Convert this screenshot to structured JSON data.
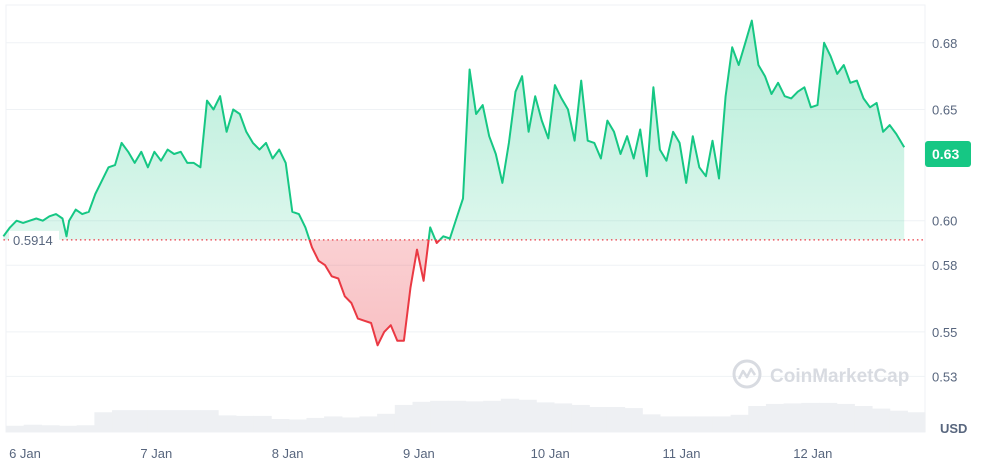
{
  "colors": {
    "up": "#16c784",
    "down": "#ea3943",
    "grid": "#eff2f5",
    "axis_text": "#58667e",
    "volume": "#eef0f3",
    "baseline": "#ea3943"
  },
  "watermark": "CoinMarketCap",
  "currency_label": "USD",
  "chart_data": {
    "type": "area",
    "title": "",
    "xlabel": "",
    "ylabel": "",
    "ylim": [
      0.505,
      0.697
    ],
    "grid": true,
    "y_ticks": [
      0.68,
      0.65,
      0.6,
      0.58,
      0.55,
      0.53
    ],
    "y_tick_labels": [
      "0.68",
      "0.65",
      "0.60",
      "0.58",
      "0.55",
      "0.53"
    ],
    "x_ticks": [
      0,
      1,
      2,
      3,
      4,
      5,
      6
    ],
    "x_tick_labels": [
      "6 Jan",
      "7 Jan",
      "8 Jan",
      "9 Jan",
      "10 Jan",
      "11 Jan",
      "12 Jan"
    ],
    "xlim": [
      -0.05,
      6.81
    ],
    "baseline": 0.5914,
    "baseline_label": "0.5914",
    "current_value": 0.63,
    "current_label": "0.63",
    "series": [
      {
        "x": [
          -0.05,
          0.0,
          0.05,
          0.1,
          0.15,
          0.2,
          0.25,
          0.3,
          0.35,
          0.4,
          0.43,
          0.45,
          0.5,
          0.55,
          0.6,
          0.65,
          0.7,
          0.75,
          0.8,
          0.85,
          0.9,
          0.95,
          1.0,
          1.05,
          1.1,
          1.15,
          1.2,
          1.25,
          1.3,
          1.35,
          1.4,
          1.45,
          1.5,
          1.55,
          1.6,
          1.65,
          1.7,
          1.75,
          1.8,
          1.85,
          1.9,
          1.95,
          2.0,
          2.05,
          2.1,
          2.15,
          2.2,
          2.25,
          2.3,
          2.35,
          2.4,
          2.45,
          2.5,
          2.55,
          2.6,
          2.65,
          2.7,
          2.75,
          2.8,
          2.85,
          2.9,
          2.95,
          3.0,
          3.05,
          3.1,
          3.15,
          3.2,
          3.25,
          3.3,
          3.35,
          3.4,
          3.45,
          3.5,
          3.55,
          3.6,
          3.65,
          3.7,
          3.75,
          3.8,
          3.85,
          3.9,
          3.95,
          4.0,
          4.05,
          4.1,
          4.15,
          4.2,
          4.25,
          4.3,
          4.35,
          4.4,
          4.45,
          4.5,
          4.55,
          4.6,
          4.65,
          4.7,
          4.75,
          4.8,
          4.85,
          4.9,
          4.95,
          5.0,
          5.05,
          5.1,
          5.15,
          5.2,
          5.25,
          5.3,
          5.35,
          5.4,
          5.45,
          5.5,
          5.55,
          5.6,
          5.65,
          5.7,
          5.75,
          5.8,
          5.85,
          5.9,
          5.95,
          6.0,
          6.05,
          6.1,
          6.15,
          6.2,
          6.25,
          6.3,
          6.35,
          6.4,
          6.45,
          6.5,
          6.55,
          6.6,
          6.65,
          6.7,
          6.75,
          6.81
        ],
        "values": [
          0.593,
          0.597,
          0.6,
          0.599,
          0.6,
          0.601,
          0.6,
          0.602,
          0.603,
          0.601,
          0.593,
          0.6,
          0.605,
          0.603,
          0.604,
          0.612,
          0.618,
          0.624,
          0.625,
          0.635,
          0.631,
          0.626,
          0.631,
          0.624,
          0.631,
          0.627,
          0.632,
          0.63,
          0.631,
          0.626,
          0.626,
          0.624,
          0.654,
          0.65,
          0.656,
          0.64,
          0.65,
          0.648,
          0.64,
          0.635,
          0.632,
          0.635,
          0.628,
          0.632,
          0.626,
          0.604,
          0.603,
          0.597,
          0.588,
          0.582,
          0.58,
          0.575,
          0.574,
          0.566,
          0.563,
          0.556,
          0.555,
          0.554,
          0.544,
          0.55,
          0.553,
          0.546,
          0.546,
          0.57,
          0.587,
          0.573,
          0.597,
          0.59,
          0.593,
          0.592,
          0.601,
          0.61,
          0.668,
          0.648,
          0.652,
          0.638,
          0.63,
          0.617,
          0.635,
          0.658,
          0.665,
          0.64,
          0.656,
          0.645,
          0.637,
          0.661,
          0.655,
          0.65,
          0.636,
          0.663,
          0.636,
          0.635,
          0.628,
          0.645,
          0.64,
          0.63,
          0.638,
          0.628,
          0.641,
          0.62,
          0.66,
          0.632,
          0.627,
          0.64,
          0.635,
          0.617,
          0.638,
          0.624,
          0.62,
          0.636,
          0.619,
          0.656,
          0.678,
          0.67,
          0.68,
          0.69,
          0.67,
          0.665,
          0.657,
          0.662,
          0.656,
          0.655,
          0.658,
          0.66,
          0.651,
          0.652,
          0.68,
          0.674,
          0.666,
          0.67,
          0.662,
          0.663,
          0.655,
          0.651,
          0.653,
          0.64,
          0.643,
          0.639,
          0.633
        ]
      }
    ],
    "volume": [
      0.12,
      0.14,
      0.13,
      0.12,
      0.13,
      0.38,
      0.42,
      0.42,
      0.42,
      0.42,
      0.42,
      0.42,
      0.32,
      0.31,
      0.31,
      0.25,
      0.24,
      0.27,
      0.3,
      0.28,
      0.3,
      0.35,
      0.52,
      0.58,
      0.6,
      0.6,
      0.59,
      0.6,
      0.64,
      0.62,
      0.57,
      0.55,
      0.52,
      0.48,
      0.48,
      0.46,
      0.34,
      0.3,
      0.3,
      0.3,
      0.3,
      0.33,
      0.5,
      0.54,
      0.55,
      0.56,
      0.56,
      0.54,
      0.5,
      0.45,
      0.41,
      0.38
    ]
  }
}
